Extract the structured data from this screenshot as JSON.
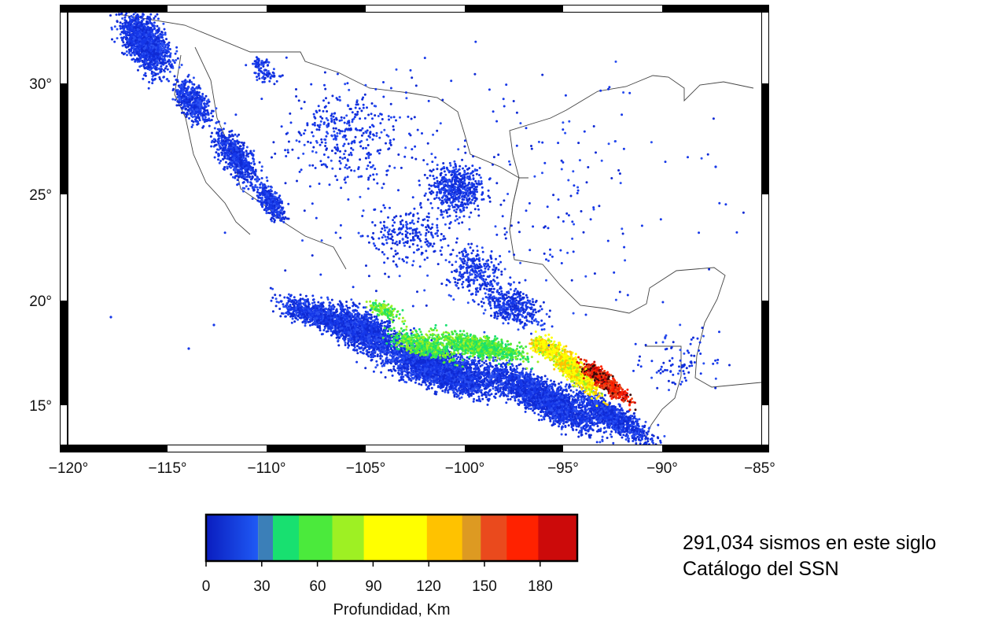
{
  "map": {
    "lon_ticks": [
      "−120°",
      "−115°",
      "−110°",
      "−105°",
      "−100°",
      "−95°",
      "−90°",
      "−85°"
    ],
    "lat_ticks": [
      "30°",
      "25°",
      "20°",
      "15°"
    ],
    "lon_range": [
      -120,
      -85
    ],
    "lat_range": [
      13,
      33
    ],
    "border_colors": {
      "land": "#ffffff",
      "coast": "#444444",
      "frame": "#000000"
    }
  },
  "colorbar": {
    "ticks": [
      "0",
      "30",
      "60",
      "90",
      "120",
      "150",
      "180"
    ],
    "title": "Profundidad, Km",
    "range": [
      0,
      200
    ],
    "segments": [
      {
        "from": 0,
        "to": 28,
        "color": "#1537e8"
      },
      {
        "from": 28,
        "to": 36,
        "color": "#3b7fb8"
      },
      {
        "from": 36,
        "to": 50,
        "color": "#18e070"
      },
      {
        "from": 50,
        "to": 68,
        "color": "#4bea3c"
      },
      {
        "from": 68,
        "to": 85,
        "color": "#9ef023"
      },
      {
        "from": 85,
        "to": 119,
        "color": "#ffff00"
      },
      {
        "from": 119,
        "to": 138,
        "color": "#ffc200"
      },
      {
        "from": 138,
        "to": 148,
        "color": "#dd9a22"
      },
      {
        "from": 148,
        "to": 162,
        "color": "#ea4a1d"
      },
      {
        "from": 162,
        "to": 179,
        "color": "#ff2200"
      },
      {
        "from": 179,
        "to": 200,
        "color": "#cc0a0a"
      }
    ]
  },
  "caption": {
    "line1": "291,034 sismos en este siglo",
    "line2": "Catálogo del SSN"
  }
}
